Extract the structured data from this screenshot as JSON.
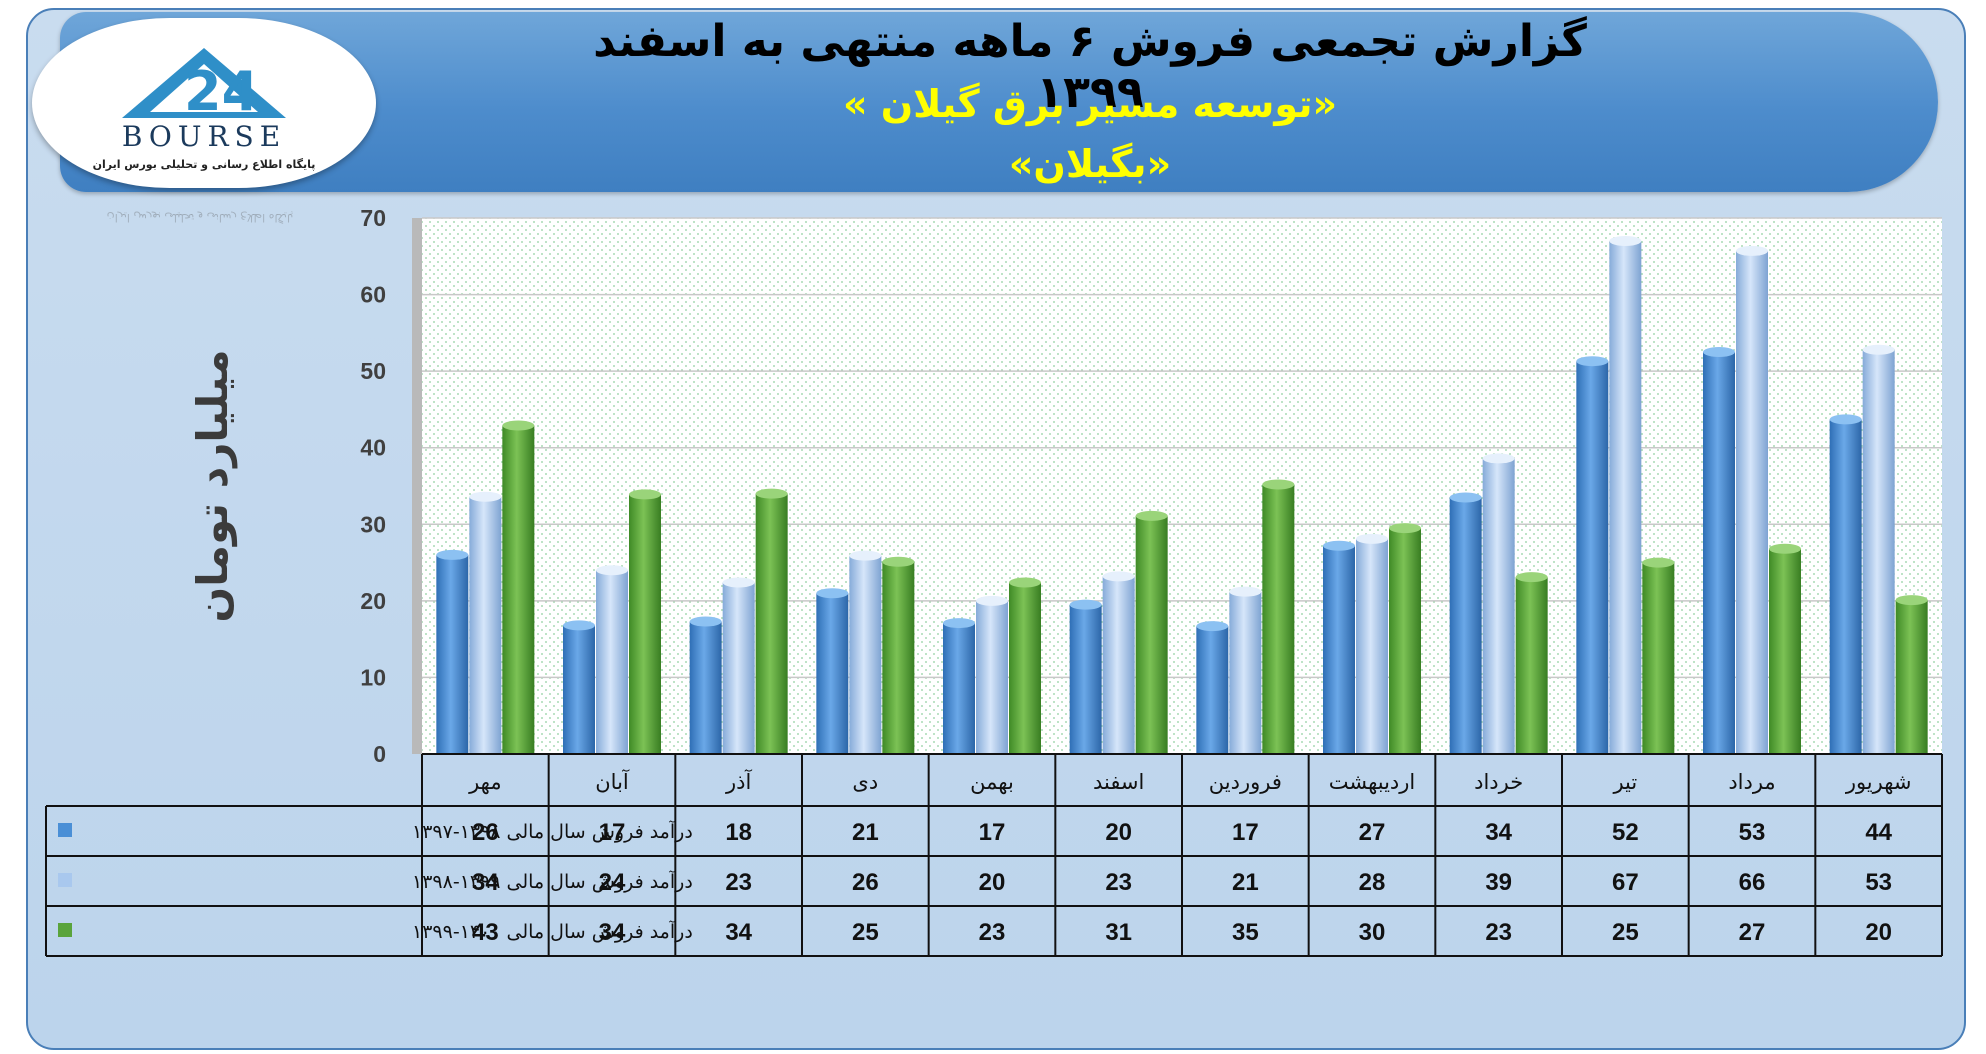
{
  "header": {
    "title": "گزارش تجمعی فروش ۶ ماهه منتهی به اسفند ۱۳۹۹",
    "subtitle": "«توسعه مسیر برق گیلان »",
    "symbol": "«بگیلان»"
  },
  "logo": {
    "name": "BOURSE",
    "tagline": "پایگاه اطلاع رسانی و تحلیلی بورس ایران"
  },
  "colors": {
    "series1": "#4a8fd6",
    "series2": "#a9c8ee",
    "series3": "#5aa43c",
    "plot_background": "#ffffff",
    "plot_dots": "#8fcf9f"
  },
  "chart_data": {
    "type": "bar",
    "ylabel": "میلیارد تومان",
    "ylim": [
      0,
      70
    ],
    "yticks": [
      0,
      10,
      20,
      30,
      40,
      50,
      60,
      70
    ],
    "grid": true,
    "legend": "table-left",
    "categories": [
      "مهر",
      "آبان",
      "آذر",
      "دی",
      "بهمن",
      "اسفند",
      "فروردین",
      "اردیبهشت",
      "خرداد",
      "تیر",
      "مرداد",
      "شهریور"
    ],
    "series": [
      {
        "name": "درآمد فروش سال مالی ۱۳۹۸-۱۳۹۷",
        "values": [
          26,
          17,
          18,
          21,
          17,
          20,
          17,
          27,
          34,
          52,
          53,
          44
        ],
        "bar_heights": [
          26,
          16.8,
          17.3,
          21,
          17.1,
          19.5,
          16.7,
          27.2,
          33.5,
          51.3,
          52.5,
          43.7
        ],
        "color": "#4a8fd6"
      },
      {
        "name": "درآمد فروش سال مالی ۱۳۹۹-۱۳۹۸",
        "values": [
          34,
          24,
          23,
          26,
          20,
          23,
          21,
          28,
          39,
          67,
          66,
          53
        ],
        "bar_heights": [
          33.6,
          24,
          22.4,
          25.9,
          20,
          23.2,
          21.2,
          28.1,
          38.6,
          67,
          65.7,
          52.8
        ],
        "color": "#a9c8ee"
      },
      {
        "name": "درآمد فروش سال مالی ۱۴۰۰-۱۳۹۹",
        "values": [
          43,
          34,
          34,
          25,
          23,
          31,
          35,
          30,
          23,
          25,
          27,
          20
        ],
        "bar_heights": [
          42.9,
          33.9,
          34,
          25.1,
          22.4,
          31.1,
          35.2,
          29.5,
          23.1,
          25,
          26.8,
          20.1
        ],
        "color": "#5aa43c"
      }
    ]
  }
}
